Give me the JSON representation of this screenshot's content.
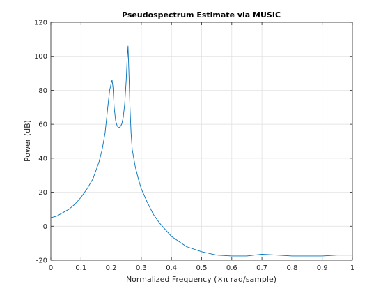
{
  "chart_data": {
    "type": "line",
    "title": "Pseudospectrum Estimate via MUSIC",
    "xlabel": "Normalized Frequency  (×π rad/sample)",
    "ylabel": "Power (dB)",
    "xlim": [
      0,
      1
    ],
    "ylim": [
      -20,
      120
    ],
    "xticks": [
      0,
      0.1,
      0.2,
      0.3,
      0.4,
      0.5,
      0.6,
      0.7,
      0.8,
      0.9,
      1
    ],
    "xtick_labels": [
      "0",
      "0.1",
      "0.2",
      "0.3",
      "0.4",
      "0.5",
      "0.6",
      "0.7",
      "0.8",
      "0.9",
      "1"
    ],
    "yticks": [
      -20,
      0,
      20,
      40,
      60,
      80,
      100,
      120
    ],
    "ytick_labels": [
      "-20",
      "0",
      "20",
      "40",
      "60",
      "80",
      "100",
      "120"
    ],
    "grid": true,
    "series": [
      {
        "color": "#0072bd",
        "x": [
          0,
          0.02,
          0.04,
          0.06,
          0.08,
          0.1,
          0.12,
          0.14,
          0.16,
          0.17,
          0.18,
          0.19,
          0.195,
          0.2,
          0.203,
          0.206,
          0.21,
          0.215,
          0.22,
          0.225,
          0.23,
          0.235,
          0.24,
          0.245,
          0.25,
          0.253,
          0.256,
          0.259,
          0.262,
          0.266,
          0.27,
          0.28,
          0.29,
          0.3,
          0.32,
          0.34,
          0.36,
          0.38,
          0.4,
          0.45,
          0.5,
          0.55,
          0.6,
          0.65,
          0.7,
          0.75,
          0.8,
          0.85,
          0.9,
          0.95,
          1.0
        ],
        "y": [
          5,
          6,
          8,
          10,
          13,
          17,
          22,
          28,
          38,
          45,
          55,
          72,
          80,
          84,
          86,
          82,
          70,
          62,
          59,
          58,
          58.5,
          60,
          64,
          72,
          86,
          98,
          106,
          90,
          72,
          55,
          45,
          35,
          28,
          22,
          14,
          7,
          2,
          -2,
          -6,
          -12,
          -15,
          -17,
          -17.5,
          -17.5,
          -16.5,
          -17,
          -17.5,
          -17.5,
          -17.5,
          -17,
          -17
        ]
      }
    ]
  }
}
